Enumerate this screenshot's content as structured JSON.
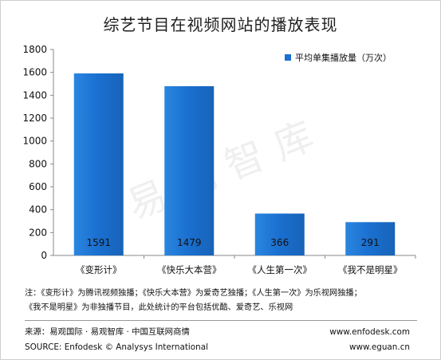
{
  "chart_data": {
    "type": "bar",
    "title": "综艺节目在视频网站的播放表现",
    "categories": [
      "《变形计》",
      "《快乐大本营》",
      "《人生第一次》",
      "《我不是明星》"
    ],
    "series": [
      {
        "name": "平均单集播放量（万次）",
        "values": [
          1591,
          1479,
          366,
          291
        ]
      }
    ],
    "data_labels": [
      "1591",
      "1479",
      "366",
      "291"
    ],
    "yticks": [
      "0",
      "200",
      "400",
      "600",
      "800",
      "1000",
      "1200",
      "1400",
      "1600",
      "1800"
    ],
    "ylim": [
      0,
      1800
    ],
    "xlabel": "",
    "ylabel": "",
    "grid": false,
    "legend_position": "top-right",
    "bar_color": "#1a6fcf"
  },
  "watermark": "易观智库",
  "note": {
    "line1": "注：《变形计》为腾讯视频独播；《快乐大本营》为爱奇艺独播；《人生第一次》为乐视网独播；",
    "line2": "《我不是明星》为非独播节目，此处统计的平台包括优酷、爱奇艺、乐视网"
  },
  "footer": {
    "source_cn": "来源：易观国际 · 易观智库 · 中国互联网商情",
    "source_en": "SOURCE: Enfodesk © Analysys International",
    "url1": "www.enfodesk.com",
    "url2": "www.eguan.cn"
  }
}
